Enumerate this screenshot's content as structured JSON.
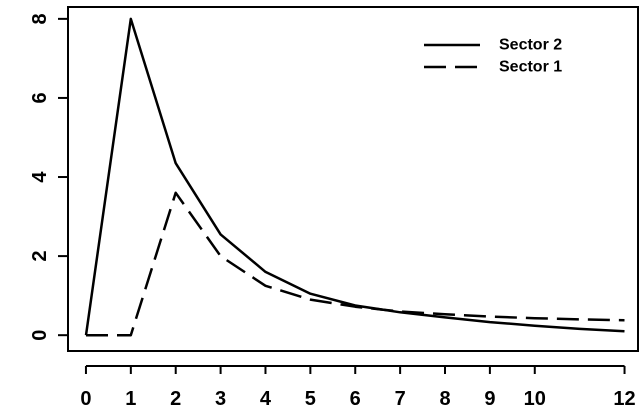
{
  "chart_data": {
    "type": "line",
    "x": [
      0,
      1,
      2,
      3,
      4,
      5,
      6,
      7,
      8,
      9,
      10,
      11,
      12
    ],
    "x_ticks": [
      0,
      1,
      2,
      3,
      4,
      5,
      6,
      7,
      8,
      9,
      10,
      12
    ],
    "y_ticks": [
      0,
      2,
      4,
      6,
      8
    ],
    "xlim": [
      -0.4,
      12.3
    ],
    "ylim": [
      -0.4,
      8.3
    ],
    "grid": false,
    "legend_position": "top-right",
    "series": [
      {
        "name": "Sector 2",
        "style": "solid",
        "color": "#000000",
        "values": [
          0,
          8,
          4.35,
          2.55,
          1.6,
          1.05,
          0.75,
          0.58,
          0.45,
          0.33,
          0.24,
          0.16,
          0.1
        ]
      },
      {
        "name": "Sector 1",
        "style": "dashed",
        "color": "#000000",
        "values": [
          0,
          0,
          3.6,
          2.0,
          1.25,
          0.9,
          0.72,
          0.6,
          0.53,
          0.47,
          0.43,
          0.4,
          0.38
        ]
      }
    ]
  }
}
